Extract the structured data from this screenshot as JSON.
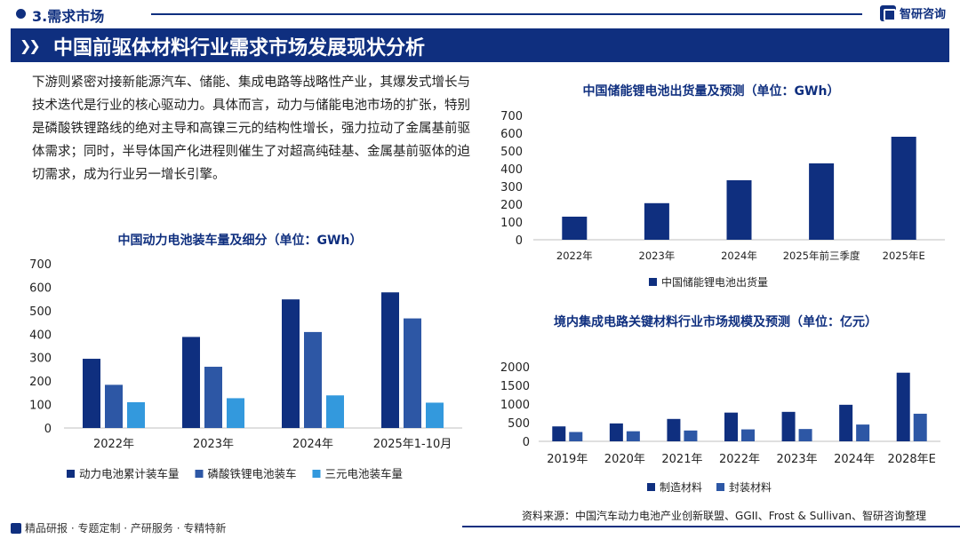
{
  "header": {
    "section": "3.需求市场",
    "brand": "智研咨询"
  },
  "banner": {
    "title": "中国前驱体材料行业需求市场发展现状分析"
  },
  "intro": "下游则紧密对接新能源汽车、储能、集成电路等战略性产业，其爆发式增长与技术迭代是行业的核心驱动力。具体而言，动力与储能电池市场的扩张，特别是磷酸铁锂路线的绝对主导和高镍三元的结构性增长，强力拉动了金属基前驱体需求；同时，半导体国产化进程则催生了对超高纯硅基、金属基前驱体的迫切需求，成为行业另一增长引擎。",
  "colors": {
    "dark": "#0f2f7f",
    "mid": "#2d57a5",
    "light": "#3399dd"
  },
  "footer": {
    "left": "精品研报 · 专题定制 · 产研服务 · 专精特新",
    "source": "资料来源：中国汽车动力电池产业创新联盟、GGII、Frost & Sullivan、智研咨询整理"
  },
  "chart_data": [
    {
      "id": "power",
      "type": "bar",
      "title": "中国动力电池装车量及细分（单位：GWh）",
      "categories": [
        "2022年",
        "2023年",
        "2024年",
        "2025年1-10月"
      ],
      "series": [
        {
          "name": "动力电池累计装车量",
          "values": [
            295,
            388,
            548,
            578
          ]
        },
        {
          "name": "磷酸铁锂电池装车",
          "values": [
            184,
            261,
            409,
            467
          ]
        },
        {
          "name": "三元电池装车量",
          "values": [
            110,
            127,
            139,
            108
          ]
        }
      ],
      "yticks": [
        "0",
        "100",
        "200",
        "300",
        "400",
        "500",
        "600",
        "700"
      ],
      "ylim": [
        0,
        700
      ],
      "legend": "bottom"
    },
    {
      "id": "storage",
      "type": "bar",
      "title": "中国储能锂电池出货量及预测（单位：GWh）",
      "categories": [
        "2022年",
        "2023年",
        "2024年",
        "2025年前三季度",
        "2025年E"
      ],
      "series": [
        {
          "name": "中国储能锂电池出货量",
          "values": [
            130,
            206,
            335,
            430,
            580
          ]
        }
      ],
      "yticks": [
        "0",
        "100",
        "200",
        "300",
        "400",
        "500",
        "600",
        "700"
      ],
      "ylim": [
        0,
        700
      ],
      "legend": "bottom"
    },
    {
      "id": "ic",
      "type": "bar",
      "title": "境内集成电路关键材料行业市场规模及预测（单位：亿元）",
      "categories": [
        "2019年",
        "2020年",
        "2021年",
        "2022年",
        "2023年",
        "2024年",
        "2028年E"
      ],
      "series": [
        {
          "name": "制造材料",
          "values": [
            400,
            480,
            600,
            770,
            790,
            980,
            1840
          ]
        },
        {
          "name": "封装材料",
          "values": [
            250,
            270,
            290,
            320,
            330,
            450,
            740
          ]
        }
      ],
      "yticks": [
        "0",
        "500",
        "1000",
        "1500",
        "2000"
      ],
      "ylim": [
        0,
        2000
      ],
      "legend": "bottom"
    }
  ]
}
